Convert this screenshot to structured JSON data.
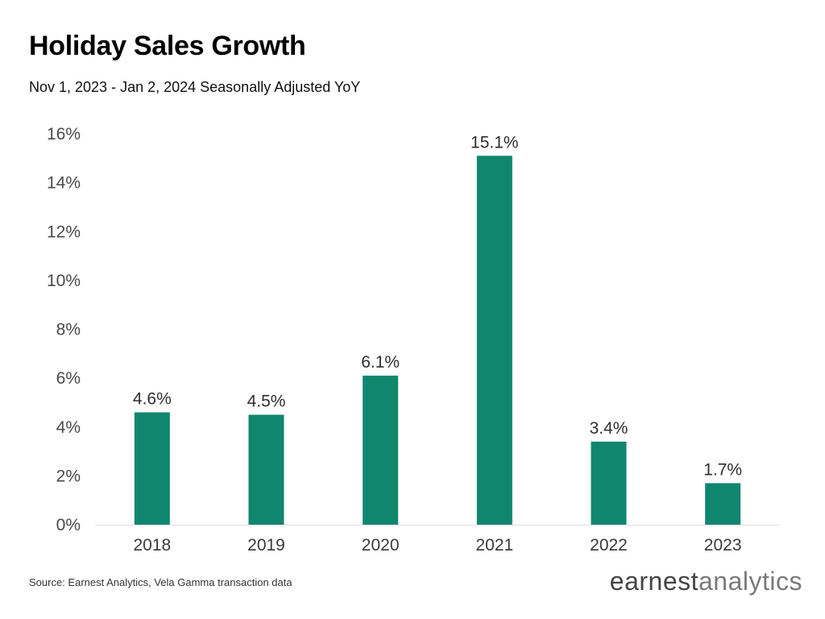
{
  "title": "Holiday Sales Growth",
  "subtitle": "Nov 1, 2023 - Jan 2, 2024 Seasonally Adjusted YoY",
  "source": "Source: Earnest Analytics, Vela Gamma transaction data",
  "logo": {
    "word1": "earnest",
    "word2": "analytics"
  },
  "chart_data": {
    "type": "bar",
    "categories": [
      "2018",
      "2019",
      "2020",
      "2021",
      "2022",
      "2023"
    ],
    "values": [
      4.6,
      4.5,
      6.1,
      15.1,
      3.4,
      1.7
    ],
    "value_labels": [
      "4.6%",
      "4.5%",
      "6.1%",
      "15.1%",
      "3.4%",
      "1.7%"
    ],
    "y_ticks": [
      0,
      2,
      4,
      6,
      8,
      10,
      12,
      14,
      16
    ],
    "y_tick_labels": [
      "0%",
      "2%",
      "4%",
      "6%",
      "8%",
      "10%",
      "12%",
      "14%",
      "16%"
    ],
    "ylim": [
      0,
      16
    ],
    "grid": false,
    "bar_color": "#11866f",
    "xlabel": "",
    "ylabel": ""
  }
}
